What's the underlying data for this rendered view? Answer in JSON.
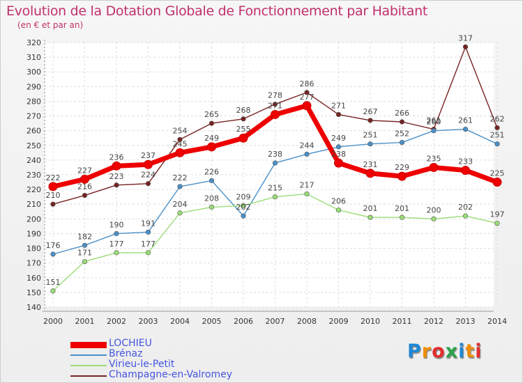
{
  "chart_data": {
    "type": "line",
    "title": "Evolution de la Dotation Globale de Fonctionnement par Habitant",
    "subtitle": "(en € et par an)",
    "x": [
      "2000",
      "2001",
      "2002",
      "2003",
      "2004",
      "2005",
      "2006",
      "2007",
      "2008",
      "2009",
      "2010",
      "2011",
      "2012",
      "2013",
      "2014"
    ],
    "ylim": [
      140,
      320
    ],
    "yticks": [
      140,
      150,
      160,
      170,
      180,
      190,
      200,
      210,
      220,
      230,
      240,
      250,
      260,
      270,
      280,
      290,
      300,
      310,
      320
    ],
    "series": [
      {
        "name": "LOCHIEU",
        "color": "#ee0000",
        "values": [
          222,
          227,
          236,
          237,
          245,
          249,
          255,
          271,
          277,
          238,
          231,
          229,
          235,
          233,
          225
        ]
      },
      {
        "name": "Brénaz",
        "color": "#4a90c8",
        "values": [
          176,
          182,
          190,
          191,
          222,
          226,
          202,
          238,
          244,
          249,
          251,
          252,
          260,
          261,
          251
        ]
      },
      {
        "name": "Virieu-le-Petit",
        "color": "#99dd77",
        "values": [
          151,
          171,
          177,
          177,
          204,
          208,
          209,
          215,
          217,
          206,
          201,
          201,
          200,
          202,
          197
        ]
      },
      {
        "name": "Champagne-en-Valromey",
        "color": "#772222",
        "values": [
          210,
          216,
          223,
          224,
          254,
          265,
          268,
          278,
          286,
          271,
          267,
          266,
          261,
          317,
          262
        ]
      }
    ]
  },
  "logo": {
    "letters": [
      "P",
      "r",
      "o",
      "x",
      "i",
      "t",
      "i"
    ],
    "colors": [
      "#1e88d6",
      "#f08c00",
      "#e32d2d",
      "#2aa34a",
      "#1e88d6",
      "#f08c00",
      "#e32d2d"
    ]
  }
}
